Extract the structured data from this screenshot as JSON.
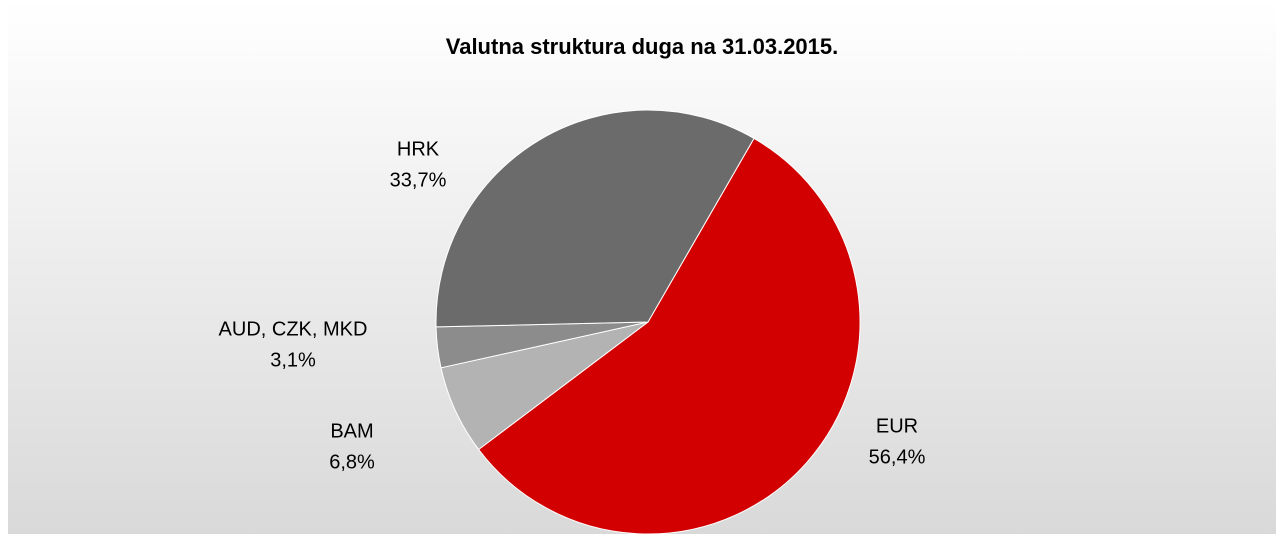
{
  "chart_data": {
    "type": "pie",
    "title": "Valutna struktura duga na 31.03.2015.",
    "categories": [
      "EUR",
      "BAM",
      "AUD, CZK, MKD",
      "HRK"
    ],
    "values": [
      56.4,
      6.8,
      3.1,
      33.7
    ],
    "value_labels": [
      "56,4%",
      "6,8%",
      "3,1%",
      "33,7%"
    ],
    "colors": [
      "#d20000",
      "#b3b3b3",
      "#8c8c8c",
      "#6b6b6b"
    ]
  }
}
